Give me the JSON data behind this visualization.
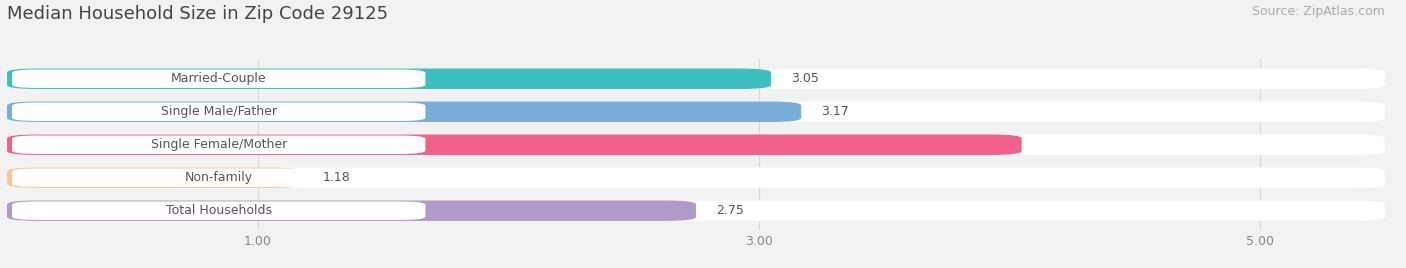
{
  "title": "Median Household Size in Zip Code 29125",
  "source": "Source: ZipAtlas.com",
  "categories": [
    "Married-Couple",
    "Single Male/Father",
    "Single Female/Mother",
    "Non-family",
    "Total Households"
  ],
  "values": [
    3.05,
    3.17,
    4.05,
    1.18,
    2.75
  ],
  "bar_colors": [
    "#3dbfbf",
    "#7aadd8",
    "#f0608a",
    "#f5c896",
    "#b09ac8"
  ],
  "value_colors": [
    "#555555",
    "#555555",
    "#ffffff",
    "#555555",
    "#555555"
  ],
  "xlim_min": 0.0,
  "xlim_max": 5.5,
  "xstart": 0.0,
  "xticks": [
    1.0,
    3.0,
    5.0
  ],
  "xtick_labels": [
    "1.00",
    "3.00",
    "5.00"
  ],
  "title_fontsize": 13,
  "source_fontsize": 9,
  "label_fontsize": 9,
  "value_fontsize": 9,
  "background_color": "#f2f2f2",
  "bar_height": 0.62,
  "bar_gap": 0.38
}
